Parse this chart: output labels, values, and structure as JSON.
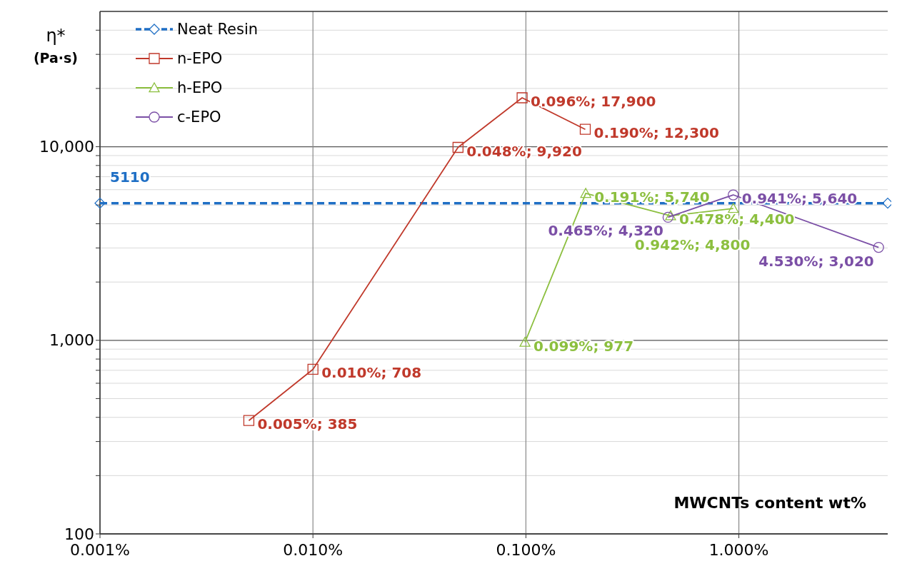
{
  "chart_data": {
    "type": "line",
    "ylabel": "η* (Pa·s)",
    "xlabel": "MWCNTs content wt%",
    "log": "xy",
    "grid": true,
    "legend": "top left",
    "line_style": "solid",
    "xlim": [
      0.001,
      5
    ],
    "xticks": [
      {
        "value": 0.001,
        "label": "0.001%"
      },
      {
        "value": 0.01,
        "label": "0.010%"
      },
      {
        "value": 0.1,
        "label": "0.100%"
      },
      {
        "value": 1,
        "label": "1.000%"
      }
    ],
    "ylim": [
      100,
      50000
    ],
    "yticks": [
      100,
      {
        "value": 200,
        "label": null
      },
      {
        "value": 300,
        "label": null
      },
      {
        "value": 400,
        "label": null
      },
      {
        "value": 500,
        "label": null
      },
      {
        "value": 600,
        "label": null
      },
      {
        "value": 700,
        "label": null
      },
      {
        "value": 800,
        "label": null
      },
      {
        "value": 900,
        "label": null
      },
      {
        "value": 1000,
        "label": "1,000"
      },
      {
        "value": 2000,
        "label": null
      },
      {
        "value": 3000,
        "label": null
      },
      {
        "value": 4000,
        "label": null
      },
      {
        "value": 5000,
        "label": null
      },
      {
        "value": 6000,
        "label": null
      },
      {
        "value": 7000,
        "label": null
      },
      {
        "value": 8000,
        "label": null
      },
      {
        "value": 9000,
        "label": null
      },
      {
        "value": 10000,
        "label": "10,000"
      },
      {
        "value": 20000,
        "label": null
      },
      {
        "value": 30000,
        "label": null
      },
      {
        "value": 40000,
        "label": null
      }
    ],
    "series": [
      {
        "name": "Neat Resin",
        "color": "#1f6fc5",
        "line_style": "dashed",
        "marker": "diamond",
        "x": [
          0.001,
          5
        ],
        "values": [
          5110,
          5110
        ],
        "value_labels": [
          "5110",
          null
        ]
      },
      {
        "name": "n-EPO",
        "color": "#c0392b",
        "marker": "square",
        "x": [
          0.005,
          0.01,
          0.048,
          0.096,
          0.19
        ],
        "values": [
          385,
          708,
          9920,
          17900,
          12300
        ],
        "value_labels": [
          "0.005%; 385",
          "0.010%; 708",
          "0.048%; 9,920",
          "0.096%; 17,900",
          "0.190%; 12,300"
        ]
      },
      {
        "name": "h-EPO",
        "color": "#8cbf3f",
        "marker": "triangle",
        "x": [
          0.099,
          0.191,
          0.478,
          0.942
        ],
        "values": [
          977,
          5740,
          4400,
          4800
        ],
        "value_labels": [
          "0.099%; 977",
          "0.191%; 5,740",
          "0.478%; 4,400",
          "0.942%; 4,800"
        ]
      },
      {
        "name": "c-EPO",
        "color": "#7b4fa6",
        "marker": "circle",
        "x": [
          0.465,
          0.941,
          4.53
        ],
        "values": [
          4320,
          5640,
          3020
        ],
        "value_labels": [
          "0.465%; 4,320",
          "0.941%; 5,640",
          "4.530%; 3,020"
        ]
      }
    ]
  }
}
